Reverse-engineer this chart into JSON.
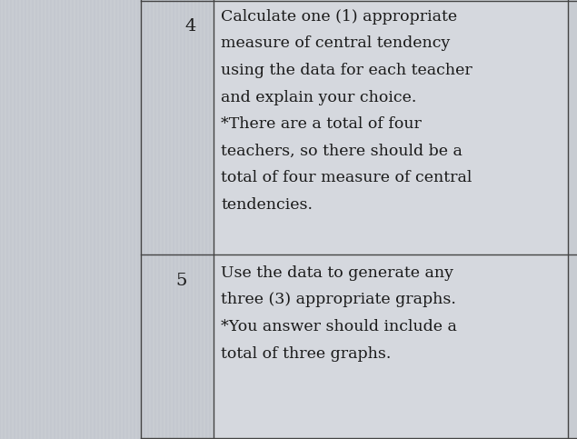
{
  "background_color": "#c8ccd2",
  "text_cell_bg": "#dde0e5",
  "number_cell_bg": "#c8ccd2",
  "border_color": "#444444",
  "text_color": "#1a1a1a",
  "rows": [
    {
      "number": "4",
      "text_lines": [
        "Calculate one (1) appropriate",
        "measure of central tendency",
        "using the data for each teacher",
        "and explain your choice.",
        "*There are a total of four",
        "teachers, so there should be a",
        "total of four measure of central",
        "tendencies."
      ]
    },
    {
      "number": "5",
      "text_lines": [
        "Use the data to generate any",
        "three (3) appropriate graphs.",
        "*You answer should include a",
        "total of three graphs."
      ]
    }
  ],
  "font_size": 12.5,
  "number_font_size": 14,
  "lw": 1.0
}
